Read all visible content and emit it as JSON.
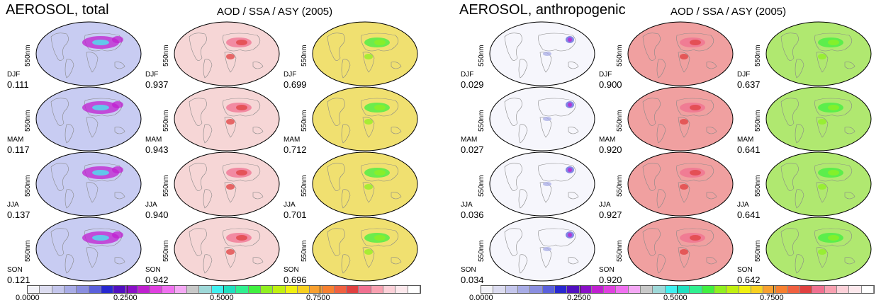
{
  "panels": [
    {
      "title": "AEROSOL, total",
      "subtitle": "AOD / SSA / ASY (2005)",
      "wavelength": "550nm",
      "rows": [
        {
          "season": "DJF",
          "aod": "0.111",
          "ssa": "0.937",
          "asy": "0.699"
        },
        {
          "season": "MAM",
          "aod": "0.117",
          "ssa": "0.943",
          "asy": "0.712"
        },
        {
          "season": "JJA",
          "aod": "0.137",
          "ssa": "0.940",
          "asy": "0.701"
        },
        {
          "season": "SON",
          "aod": "0.121",
          "ssa": "0.942",
          "asy": "0.696"
        }
      ],
      "ticks": [
        "0.0000",
        "0.2500",
        "0.5000",
        "0.7500"
      ]
    },
    {
      "title": "AEROSOL, anthropogenic",
      "subtitle": "AOD / SSA / ASY  (2005)",
      "wavelength": "550nm",
      "rows": [
        {
          "season": "DJF",
          "aod": "0.029",
          "ssa": "0.900",
          "asy": "0.637"
        },
        {
          "season": "MAM",
          "aod": "0.027",
          "ssa": "0.920",
          "asy": "0.641"
        },
        {
          "season": "JJA",
          "aod": "0.036",
          "ssa": "0.927",
          "asy": "0.641"
        },
        {
          "season": "SON",
          "aod": "0.034",
          "ssa": "0.920",
          "asy": "0.642"
        }
      ],
      "ticks": [
        "0.0000",
        "0.2500",
        "0.5000",
        "0.7500"
      ]
    }
  ],
  "colorbar_colors": [
    "#f2f2f8",
    "#dcdcf0",
    "#c4c6ec",
    "#a8ace6",
    "#8a8ee0",
    "#5a60dc",
    "#2828d0",
    "#5010c0",
    "#8a10c8",
    "#c020d0",
    "#e040e0",
    "#f070f0",
    "#f4a8f4",
    "#c8c8c8",
    "#9ed8d8",
    "#40f0f0",
    "#20e0c0",
    "#30f090",
    "#40f040",
    "#90f020",
    "#c0f010",
    "#f0f010",
    "#f8d020",
    "#f8a030",
    "#f88030",
    "#f06040",
    "#e04040",
    "#f07090",
    "#f8a0b0",
    "#fcd0d8",
    "#fce8ec",
    "#ffffff"
  ],
  "colors": {
    "aod_total_base": "#c8ccf2",
    "aod_anthro_base": "#f6f6fc",
    "ssa_total_base": "#f6d6d6",
    "ssa_anthro_base": "#f0a0a0",
    "asy_total_base": "#f0e070",
    "asy_anthro_base": "#b0e870"
  }
}
